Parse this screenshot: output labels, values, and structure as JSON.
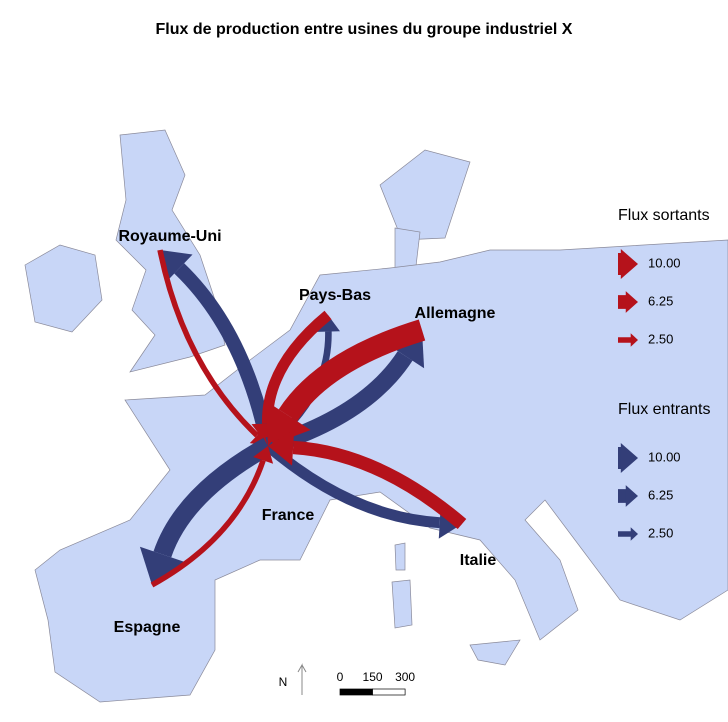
{
  "title": "Flux de production entre usines du groupe industriel X",
  "places": [
    {
      "label": "Royaume-Uni",
      "sortant": 2.5,
      "entrant": 6.5
    },
    {
      "label": "Pays-Bas",
      "sortant": 5,
      "entrant": 3
    },
    {
      "label": "Allemagne",
      "sortant": 10,
      "entrant": 8
    },
    {
      "label": "France",
      "sortant": null,
      "entrant": null
    },
    {
      "label": "Italie",
      "sortant": 6,
      "entrant": 5
    },
    {
      "label": "Espagne",
      "sortant": 2.5,
      "entrant": 8.5
    }
  ],
  "legend_sortants": {
    "title": "Flux sortants",
    "color": "#b5121b",
    "ticks": [
      {
        "value": 10,
        "label": "10.00"
      },
      {
        "value": 6.25,
        "label": "6.25"
      },
      {
        "value": 2.5,
        "label": "2.50"
      }
    ]
  },
  "legend_entrants": {
    "title": "Flux entrants",
    "color": "#333e78",
    "ticks": [
      {
        "value": 10,
        "label": "10.00"
      },
      {
        "value": 6.25,
        "label": "6.25"
      },
      {
        "value": 2.5,
        "label": "2.50"
      }
    ]
  },
  "north": "N",
  "scale": {
    "ticks": [
      0,
      150,
      300
    ]
  }
}
